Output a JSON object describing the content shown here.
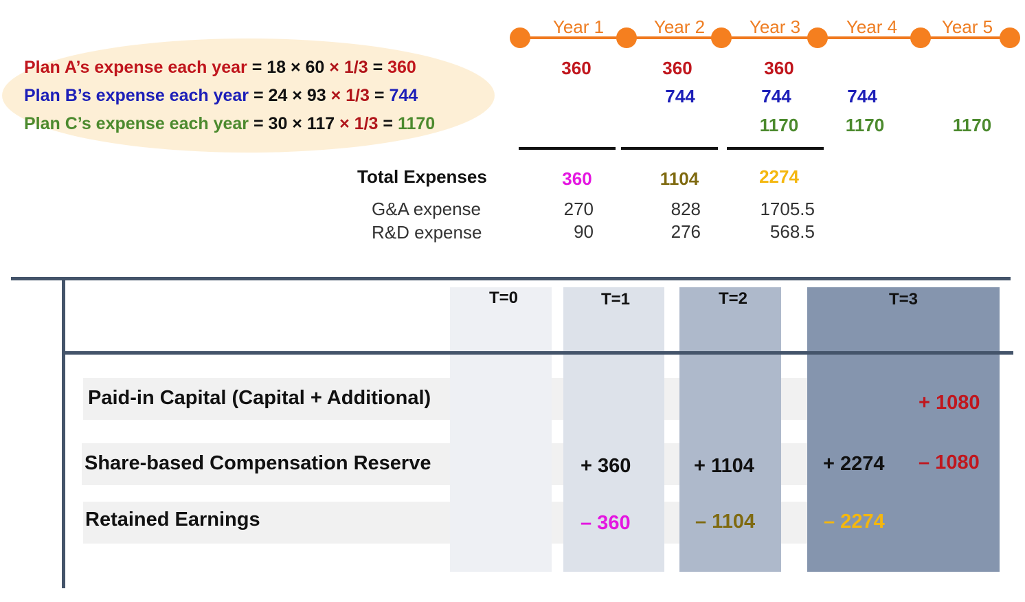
{
  "timeline": {
    "years": [
      "Year 1",
      "Year 2",
      "Year 3",
      "Year 4",
      "Year 5"
    ],
    "accent_color": "#f57f1f"
  },
  "plans": [
    {
      "label": "Plan A’s expense each year",
      "formula": "= 18 × 60",
      "fraction": "× 1/3",
      "eq": "=",
      "result": "360",
      "color": "#c0161d"
    },
    {
      "label": "Plan B’s expense each year",
      "formula": "= 24 × 93",
      "fraction": "× 1/3",
      "eq": "=",
      "result": "744",
      "color": "#1d1fb8"
    },
    {
      "label": "Plan C’s expense each year",
      "formula": "= 30 × 117",
      "fraction": "× 1/3",
      "eq": "=",
      "result": "1170",
      "color": "#4c8a2e"
    }
  ],
  "schedule": {
    "plan_a": [
      "360",
      "360",
      "360"
    ],
    "plan_b": [
      "744",
      "744",
      "744"
    ],
    "plan_c": [
      "1170",
      "1170",
      "1170"
    ]
  },
  "totals": {
    "label": "Total Expenses",
    "values": [
      "360",
      "1104",
      "2274"
    ],
    "colors": [
      "#e416e0",
      "#7f6a10",
      "#f4b70f"
    ],
    "ga_label": "G&A expense",
    "ga_values": [
      "270",
      "828",
      "1705.5"
    ],
    "rd_label": "R&D expense",
    "rd_values": [
      "90",
      "276",
      "568.5"
    ]
  },
  "equity_table": {
    "columns": [
      "T=0",
      "T=1",
      "T=2",
      "T=3"
    ],
    "rows": [
      {
        "label": "Paid-in Capital (Capital + Additional)",
        "t3_b": "+ 1080"
      },
      {
        "label": "Share-based Compensation Reserve",
        "t1": "+ 360",
        "t2": "+ 1104",
        "t3_a": "+ 2274",
        "t3_b": "– 1080"
      },
      {
        "label": "Retained Earnings",
        "t1": "– 360",
        "t2": "– 1104",
        "t3_a": "– 2274"
      }
    ]
  }
}
